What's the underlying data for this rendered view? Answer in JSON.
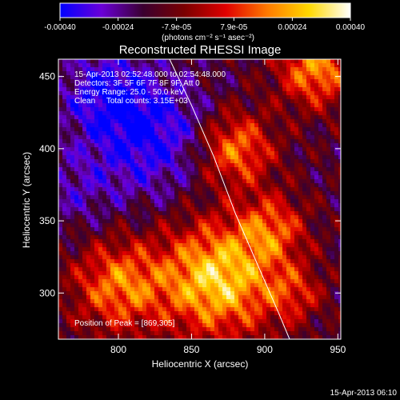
{
  "chart_data": {
    "type": "heatmap",
    "title": "Reconstructed RHESSI Image",
    "xlabel": "Heliocentric X (arcsec)",
    "ylabel": "Heliocentric Y (arcsec)",
    "xlim": [
      759,
      952
    ],
    "ylim": [
      268,
      462
    ],
    "x_ticks": [
      800,
      850,
      900,
      950
    ],
    "y_ticks": [
      300,
      350,
      400,
      450
    ],
    "annotations": [
      "15-Apr-2013 02:52:48.000 to 02:54:48.000",
      "Detectors: 3F 5F 6F 7F 8F 9F, Att 0",
      "Energy Range: 25.0 - 50.0 keV",
      "Clean     Total counts: 3.15E+03",
      "Position of Peak = [869,305]"
    ],
    "colorbar": {
      "tick_labels": [
        "-0.00040",
        "-0.00024",
        "-7.9e-05",
        "7.9e-05",
        "0.00024",
        "0.00040"
      ],
      "ticks": [
        -0.0004,
        -0.00024,
        -7.9e-05,
        7.9e-05,
        0.00024,
        0.0004
      ],
      "range": [
        -0.0004,
        0.0004
      ],
      "unit_label": "(photons cm⁻² s⁻¹ asec⁻²)"
    },
    "limb_curve": [
      [
        835,
        462
      ],
      [
        850,
        430
      ],
      [
        865,
        395
      ],
      [
        880,
        355
      ],
      [
        895,
        320
      ],
      [
        910,
        285
      ],
      [
        917,
        268
      ]
    ],
    "peak": [
      869,
      305
    ],
    "colormap": [
      "#0000ff",
      "#6a00d8",
      "#3a0030",
      "#7a0000",
      "#e00000",
      "#ff7a00",
      "#ffd800",
      "#ffffff"
    ]
  },
  "footer": {
    "timestamp": "15-Apr-2013 06:10"
  }
}
